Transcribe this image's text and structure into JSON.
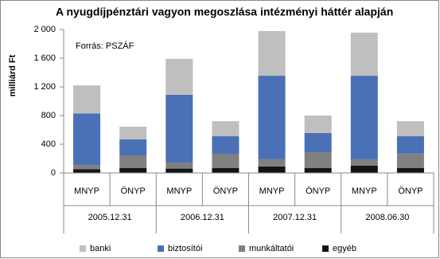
{
  "chart_data": {
    "type": "stacked-bar",
    "title": "A nyugdíjpénztári vagyon megoszlása intézményi háttér alapján",
    "annotation": "Forrás: PSZÁF",
    "y_label": "milliárd Ft",
    "categories": [
      "MNYP",
      "ÖNYP",
      "MNYP",
      "ÖNYP",
      "MNYP",
      "ÖNYP",
      "MNYP",
      "ÖNYP"
    ],
    "groups": [
      "2005.12.31",
      "2006.12.31",
      "2007.12.31",
      "2008.06.30"
    ],
    "series": [
      {
        "name": "egyéb",
        "color": "#141414",
        "values": [
          50,
          70,
          60,
          70,
          90,
          70,
          100,
          70
        ]
      },
      {
        "name": "munkáltatói",
        "color": "#808080",
        "values": [
          60,
          175,
          85,
          197,
          100,
          219,
          90,
          200
        ]
      },
      {
        "name": "biztosítói",
        "color": "#4a70b5",
        "values": [
          720,
          222,
          945,
          244,
          1165,
          267,
          1165,
          241
        ]
      },
      {
        "name": "banki",
        "color": "#bfbfbf",
        "values": [
          390,
          177,
          500,
          211,
          623,
          244,
          601,
          211
        ]
      }
    ],
    "legend_order": [
      "banki",
      "biztosítói",
      "munkáltatói",
      "egyéb"
    ],
    "ylim": [
      0,
      2000
    ],
    "yticks": [
      0,
      400,
      800,
      {
        "value": 1200,
        "label": "1 200"
      },
      {
        "value": 1600,
        "label": "1 600"
      },
      {
        "value": 2000,
        "label": "2 000"
      }
    ],
    "grid": false
  }
}
